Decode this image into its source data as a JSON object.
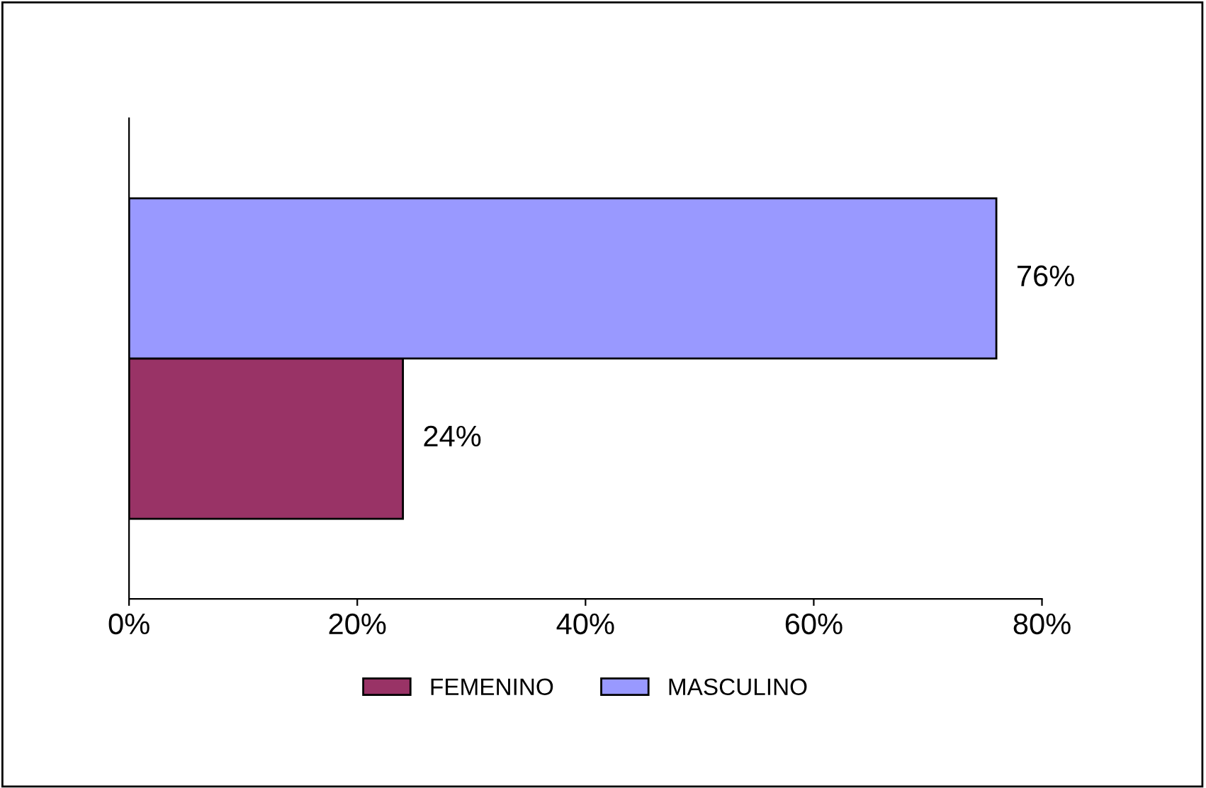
{
  "chart_data": {
    "type": "bar",
    "orientation": "horizontal",
    "categories": [
      null
    ],
    "series": [
      {
        "name": "FEMENINO",
        "color": "#993366",
        "values": [
          24
        ],
        "value_labels": [
          "24%"
        ]
      },
      {
        "name": "MASCULINO",
        "color": "#9999ff",
        "values": [
          76
        ],
        "value_labels": [
          "76%"
        ]
      }
    ],
    "xlim": [
      0,
      80
    ],
    "xticks": [
      {
        "value": 0,
        "label": "0%"
      },
      {
        "value": 20,
        "label": "20%"
      },
      {
        "value": 40,
        "label": "40%"
      },
      {
        "value": 60,
        "label": "60%"
      },
      {
        "value": 80,
        "label": "80%"
      }
    ],
    "grid": false,
    "legend": "bottom",
    "tick_labels": "x"
  }
}
